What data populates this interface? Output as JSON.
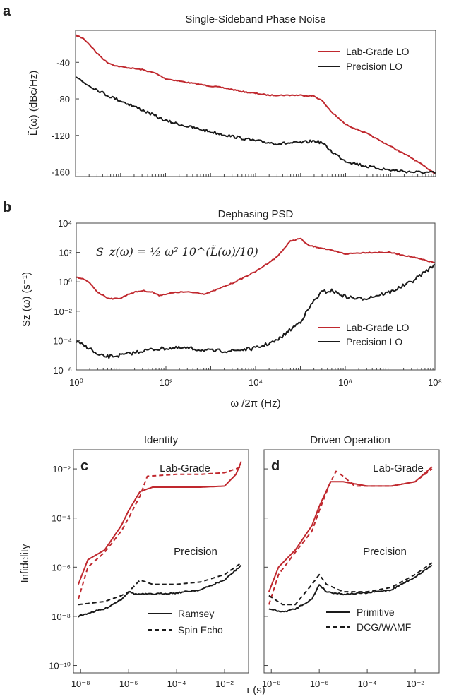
{
  "colors": {
    "lab": "#c0282e",
    "precision": "#1a1a1a",
    "axis": "#444444"
  },
  "chart_data": [
    {
      "panel": "a",
      "type": "line",
      "title": "Single-Sideband Phase Noise",
      "ylabel": "L̃(ω) (dBc/Hz)",
      "xscale": "log",
      "xlim": [
        1,
        100000000
      ],
      "ylim": [
        -165,
        -5
      ],
      "yticks": [
        -40,
        -80,
        -120,
        -160
      ],
      "legend_position": "top-right",
      "series": [
        {
          "name": "Lab-Grade LO",
          "color": "#c0282e",
          "x": [
            1,
            1.5,
            2,
            3,
            5,
            8,
            15,
            30,
            60,
            100,
            300,
            1000,
            2000,
            5000,
            10000,
            20000,
            50000,
            100000,
            200000,
            300000,
            500000,
            1000000,
            3000000,
            10000000,
            30000000,
            100000000
          ],
          "y": [
            -10,
            -14,
            -20,
            -30,
            -40,
            -44,
            -46,
            -48,
            -52,
            -58,
            -62,
            -66,
            -68,
            -72,
            -74,
            -76,
            -76,
            -76,
            -77,
            -82,
            -95,
            -108,
            -118,
            -132,
            -145,
            -162
          ]
        },
        {
          "name": "Precision LO",
          "color": "#1a1a1a",
          "x": [
            1,
            1.5,
            3,
            5,
            10,
            30,
            100,
            300,
            1000,
            3000,
            10000,
            30000,
            100000,
            200000,
            300000,
            500000,
            1000000,
            3000000,
            10000000,
            30000000,
            100000000
          ],
          "y": [
            -55,
            -62,
            -70,
            -76,
            -82,
            -92,
            -104,
            -110,
            -116,
            -121,
            -126,
            -129,
            -128,
            -126,
            -128,
            -138,
            -148,
            -154,
            -158,
            -160,
            -161
          ]
        }
      ]
    },
    {
      "panel": "b",
      "type": "line",
      "title": "Dephasing PSD",
      "ylabel": "Sz (ω) (s⁻¹)",
      "xlabel": "ω /2π (Hz)",
      "xscale": "log",
      "yscale": "log",
      "xlim": [
        1,
        100000000
      ],
      "ylim": [
        1e-06,
        10000
      ],
      "xticks": [
        "10⁰",
        "10²",
        "10⁴",
        "10⁶",
        "10⁸"
      ],
      "yticks": [
        "10⁴",
        "10²",
        "10⁰",
        "10⁻²",
        "10⁻⁴",
        "10⁻⁶"
      ],
      "equation": "S_z(ω) = ½ ω² 10^(L̃(ω)/10)",
      "legend_position": "bottom-right",
      "series": [
        {
          "name": "Lab-Grade LO",
          "color": "#c0282e",
          "x": [
            1,
            1.5,
            2,
            3,
            5,
            7,
            10,
            15,
            20,
            30,
            50,
            70,
            100,
            150,
            200,
            300,
            500,
            700,
            1000,
            3000,
            10000,
            30000,
            60000,
            100000,
            150000,
            300000,
            1000000,
            3000000,
            10000000,
            30000000,
            100000000
          ],
          "y": [
            2,
            1.5,
            0.8,
            0.2,
            0.08,
            0.07,
            0.08,
            0.15,
            0.2,
            0.25,
            0.2,
            0.12,
            0.15,
            0.18,
            0.2,
            0.2,
            0.18,
            0.15,
            0.2,
            0.8,
            5,
            50,
            600,
            900,
            300,
            200,
            80,
            100,
            100,
            50,
            20
          ]
        },
        {
          "name": "Precision LO",
          "color": "#1a1a1a",
          "x": [
            1,
            2,
            3,
            5,
            10,
            20,
            30,
            50,
            100,
            300,
            1000,
            3000,
            10000,
            30000,
            100000,
            200000,
            300000,
            500000,
            1000000,
            2000000,
            3000000,
            10000000,
            30000000,
            100000000
          ],
          "y": [
            8e-05,
            3e-05,
            1e-05,
            8e-06,
            1e-05,
            1.5e-05,
            2e-05,
            2.5e-05,
            3e-05,
            3e-05,
            2e-05,
            2e-05,
            3e-05,
            0.0001,
            0.002,
            0.05,
            0.2,
            0.25,
            0.1,
            0.07,
            0.08,
            0.2,
            1,
            15
          ]
        }
      ]
    },
    {
      "panel": "c",
      "type": "line",
      "title": "Identity",
      "ylabel": "Infidelity",
      "xlabel": "τ (s)",
      "xscale": "log",
      "yscale": "log",
      "xlim": [
        5e-09,
        0.1
      ],
      "ylim": [
        5e-11,
        0.06
      ],
      "xticks": [
        "10⁻⁸",
        "10⁻⁶",
        "10⁻⁴",
        "10⁻²"
      ],
      "yticks": [
        "10⁻²",
        "10⁻⁴",
        "10⁻⁶",
        "10⁻⁸",
        "10⁻¹⁰"
      ],
      "annotations": [
        "Lab-Grade",
        "Precision"
      ],
      "legend_position": "bottom-right",
      "legend": [
        {
          "name": "Ramsey",
          "dash": "solid"
        },
        {
          "name": "Spin Echo",
          "dash": "dashed"
        }
      ],
      "series": [
        {
          "name": "Ramsey",
          "group": "Lab-Grade",
          "color": "#c0282e",
          "dash": "solid",
          "x": [
            8e-09,
            2e-08,
            1e-07,
            5e-07,
            1e-06,
            3e-06,
            1e-05,
            0.0001,
            0.001,
            0.01,
            0.03,
            0.05
          ],
          "y": [
            2e-07,
            2e-06,
            5e-06,
            5e-05,
            0.0002,
            0.0012,
            0.0018,
            0.0018,
            0.0018,
            0.002,
            0.006,
            0.02
          ]
        },
        {
          "name": "Spin Echo",
          "group": "Lab-Grade",
          "color": "#c0282e",
          "dash": "dashed",
          "x": [
            8e-09,
            2e-08,
            1e-07,
            5e-07,
            1e-06,
            3e-06,
            6e-06,
            0.0001,
            0.001,
            0.01,
            0.05
          ],
          "y": [
            5e-08,
            1e-06,
            4e-06,
            3e-05,
            0.0001,
            0.0008,
            0.005,
            0.006,
            0.006,
            0.007,
            0.012
          ]
        },
        {
          "name": "Ramsey",
          "group": "Precision",
          "color": "#1a1a1a",
          "dash": "solid",
          "x": [
            8e-09,
            3e-08,
            1e-07,
            5e-07,
            1e-06,
            2e-06,
            1e-05,
            0.0001,
            0.001,
            0.01,
            0.05
          ],
          "y": [
            1e-08,
            1.5e-08,
            2e-08,
            5e-08,
            1e-07,
            8e-08,
            8e-08,
            9e-08,
            1.2e-07,
            3e-07,
            1.2e-06
          ]
        },
        {
          "name": "Spin Echo",
          "group": "Precision",
          "color": "#1a1a1a",
          "dash": "dashed",
          "x": [
            8e-09,
            3e-08,
            1e-07,
            5e-07,
            1e-06,
            3e-06,
            1e-05,
            0.0001,
            0.001,
            0.01,
            0.05
          ],
          "y": [
            3e-08,
            3.5e-08,
            4e-08,
            7e-08,
            1e-07,
            3e-07,
            2e-07,
            2e-07,
            2.5e-07,
            5e-07,
            1.5e-06
          ]
        }
      ]
    },
    {
      "panel": "d",
      "type": "line",
      "title": "Driven Operation",
      "xlabel": "τ (s)",
      "xscale": "log",
      "yscale": "log",
      "xlim": [
        5e-09,
        0.1
      ],
      "ylim": [
        5e-11,
        0.06
      ],
      "xticks": [
        "10⁻⁸",
        "10⁻⁶",
        "10⁻⁴",
        "10⁻²"
      ],
      "annotations": [
        "Lab-Grade",
        "Precision"
      ],
      "legend_position": "bottom-right",
      "legend": [
        {
          "name": "Primitive",
          "dash": "solid"
        },
        {
          "name": "DCG/WAMF",
          "dash": "dashed"
        }
      ],
      "series": [
        {
          "name": "Primitive",
          "group": "Lab-Grade",
          "color": "#c0282e",
          "dash": "solid",
          "x": [
            8e-09,
            2e-08,
            1e-07,
            5e-07,
            1e-06,
            3e-06,
            1e-05,
            0.0001,
            0.001,
            0.01,
            0.05
          ],
          "y": [
            1e-07,
            1e-06,
            5e-06,
            5e-05,
            0.0003,
            0.003,
            0.003,
            0.002,
            0.002,
            0.003,
            0.012
          ]
        },
        {
          "name": "DCG/WAMF",
          "group": "Lab-Grade",
          "color": "#c0282e",
          "dash": "dashed",
          "x": [
            8e-09,
            2e-08,
            1e-07,
            5e-07,
            1e-06,
            3e-06,
            5e-06,
            1e-05,
            3e-05,
            0.0001,
            0.001,
            0.01,
            0.05
          ],
          "y": [
            3e-08,
            5e-07,
            4e-06,
            3e-05,
            0.0002,
            0.003,
            0.008,
            0.005,
            0.002,
            0.002,
            0.002,
            0.003,
            0.01
          ]
        },
        {
          "name": "Primitive",
          "group": "Precision",
          "color": "#1a1a1a",
          "dash": "solid",
          "x": [
            8e-09,
            3e-08,
            1e-07,
            5e-07,
            1e-06,
            2e-06,
            1e-05,
            0.0001,
            0.001,
            0.01,
            0.05
          ],
          "y": [
            2e-08,
            1.5e-08,
            2e-08,
            5e-08,
            2e-07,
            1e-07,
            8e-08,
            9e-08,
            1.2e-07,
            4e-07,
            1.2e-06
          ]
        },
        {
          "name": "DCG/WAMF",
          "group": "Precision",
          "color": "#1a1a1a",
          "dash": "dashed",
          "x": [
            8e-09,
            3e-08,
            1e-07,
            5e-07,
            1e-06,
            2e-06,
            1e-05,
            0.0001,
            0.001,
            0.01,
            0.05
          ],
          "y": [
            7e-08,
            3e-08,
            3e-08,
            2e-07,
            5e-07,
            2e-07,
            1e-07,
            1e-07,
            1.5e-07,
            5e-07,
            1.5e-06
          ]
        }
      ]
    }
  ]
}
